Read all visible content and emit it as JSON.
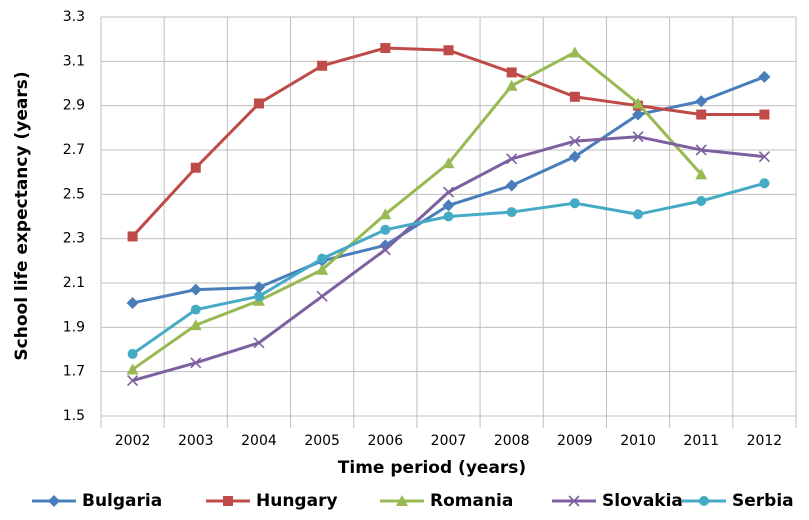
{
  "chart_data": {
    "type": "line",
    "y_label": "School life expectancy  (years)",
    "x_label": "Time period (years)",
    "categories": [
      "2002",
      "2003",
      "2004",
      "2005",
      "2006",
      "2007",
      "2008",
      "2009",
      "2010",
      "2011",
      "2012"
    ],
    "ylim": [
      1.5,
      3.3
    ],
    "yticks": [
      1.5,
      1.7,
      1.9,
      2.1,
      2.3,
      2.5,
      2.7,
      2.9,
      3.1,
      3.3
    ],
    "grid": true,
    "legend": "bottom",
    "series": [
      {
        "name": "Bulgaria",
        "color": "#4a7ebb",
        "marker": "diamond",
        "values": [
          2.01,
          2.07,
          2.08,
          2.2,
          2.27,
          2.45,
          2.54,
          2.67,
          2.86,
          2.92,
          3.03
        ]
      },
      {
        "name": "Hungary",
        "color": "#be4b48",
        "marker": "square",
        "values": [
          2.31,
          2.62,
          2.91,
          3.08,
          3.16,
          3.15,
          3.05,
          2.94,
          2.9,
          2.86,
          2.86
        ]
      },
      {
        "name": "Romania",
        "color": "#98b954",
        "marker": "triangle",
        "values": [
          1.71,
          1.91,
          2.02,
          2.16,
          2.41,
          2.64,
          2.99,
          3.14,
          2.91,
          2.59,
          null
        ]
      },
      {
        "name": "Slovakia",
        "color": "#7d60a0",
        "marker": "x",
        "values": [
          1.66,
          1.74,
          1.83,
          2.04,
          2.25,
          2.51,
          2.66,
          2.74,
          2.76,
          2.7,
          2.67
        ]
      },
      {
        "name": "Serbia",
        "color": "#46aac5",
        "marker": "circle",
        "values": [
          1.78,
          1.98,
          2.04,
          2.21,
          2.34,
          2.4,
          2.42,
          2.46,
          2.41,
          2.47,
          2.55
        ]
      }
    ]
  }
}
